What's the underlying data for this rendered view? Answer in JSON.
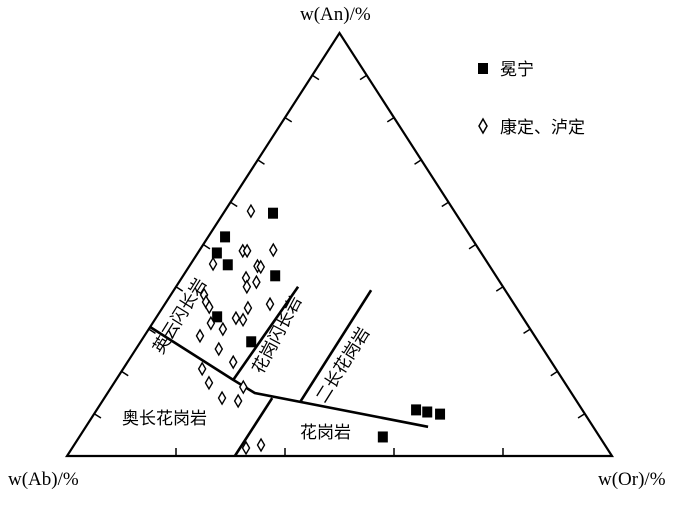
{
  "chart_data": {
    "type": "scatter",
    "subtype": "ternary",
    "axes": {
      "top": "w(An)/%",
      "left": "w(Ab)/%",
      "right": "w(Or)/%"
    },
    "axis_range": [
      0,
      100
    ],
    "tick_interval_sides": 10,
    "tick_interval_bottom": 20,
    "legend": {
      "placement": "top-right",
      "entries": [
        {
          "label": "冕宁",
          "marker": "filled-square"
        },
        {
          "label": "康定、泸定",
          "marker": "open-diamond"
        }
      ]
    },
    "series": [
      {
        "name": "冕宁",
        "marker": "filled-square",
        "color": "#000000",
        "points": [
          [
            57.4,
            33.5,
            9.1
          ],
          [
            51.8,
            45.1,
            3.1
          ],
          [
            48.0,
            48.5,
            3.5
          ],
          [
            45.2,
            47.9,
            6.9
          ],
          [
            42.6,
            40.5,
            16.9
          ],
          [
            32.9,
            56.0,
            11.1
          ],
          [
            27.0,
            52.7,
            20.3
          ],
          [
            10.9,
            30.5,
            58.6
          ],
          [
            10.4,
            28.7,
            60.9
          ],
          [
            9.9,
            26.6,
            63.5
          ],
          [
            4.5,
            39.8,
            55.7
          ]
        ]
      },
      {
        "name": "康定、泸定",
        "marker": "open-diamond",
        "color": "#000000",
        "points": [
          [
            57.9,
            37.3,
            4.8
          ],
          [
            48.7,
            37.8,
            13.5
          ],
          [
            48.5,
            43.5,
            8.0
          ],
          [
            48.5,
            42.7,
            8.8
          ],
          [
            45.4,
            50.5,
            4.1
          ],
          [
            44.9,
            42.6,
            12.5
          ],
          [
            44.7,
            42.1,
            13.2
          ],
          [
            42.1,
            46.1,
            11.8
          ],
          [
            40.0,
            47.0,
            13.0
          ],
          [
            41.1,
            44.7,
            14.2
          ],
          [
            38.1,
            55.8,
            6.1
          ],
          [
            36.4,
            56.3,
            7.3
          ],
          [
            35.2,
            56.3,
            8.5
          ],
          [
            35.9,
            44.8,
            19.3
          ],
          [
            35.0,
            49.3,
            15.7
          ],
          [
            32.6,
            52.7,
            14.7
          ],
          [
            32.2,
            51.6,
            16.2
          ],
          [
            31.4,
            57.9,
            10.7
          ],
          [
            30.0,
            56.4,
            13.6
          ],
          [
            28.4,
            61.4,
            10.2
          ],
          [
            25.3,
            59.5,
            15.2
          ],
          [
            22.2,
            58.4,
            19.4
          ],
          [
            20.6,
            64.9,
            14.5
          ],
          [
            17.3,
            65.3,
            17.4
          ],
          [
            16.3,
            59.5,
            24.2
          ],
          [
            13.7,
            64.7,
            21.6
          ],
          [
            13.0,
            62.1,
            24.9
          ],
          [
            1.9,
            66.2,
            31.9
          ],
          [
            2.6,
            63.1,
            34.3
          ]
        ]
      }
    ],
    "point_order": "An, Ab, Or",
    "field_boundaries": [
      [
        [
          30.5,
          69.5,
          0
        ],
        [
          18.0,
          60.5,
          21.5
        ],
        [
          14.9,
          58.1,
          27.0
        ],
        [
          6.9,
          30.3,
          62.8
        ]
      ],
      [
        [
          40.0,
          37.6,
          22.4
        ],
        [
          18.0,
          60.5,
          21.5
        ]
      ],
      [
        [
          13.7,
          55.5,
          30.8
        ],
        [
          0,
          69.2,
          30.8
        ]
      ],
      [
        [
          39.2,
          24.6,
          36.2
        ],
        [
          12.8,
          50.8,
          36.4
        ]
      ]
    ],
    "field_labels": {
      "tonalite": "英云闪长岩",
      "granodiorite": "花岗闪长岩",
      "monzogranite": "二长花岗岩",
      "trondhjemite": "奥长花岗岩",
      "granite": "花岗岩"
    }
  }
}
